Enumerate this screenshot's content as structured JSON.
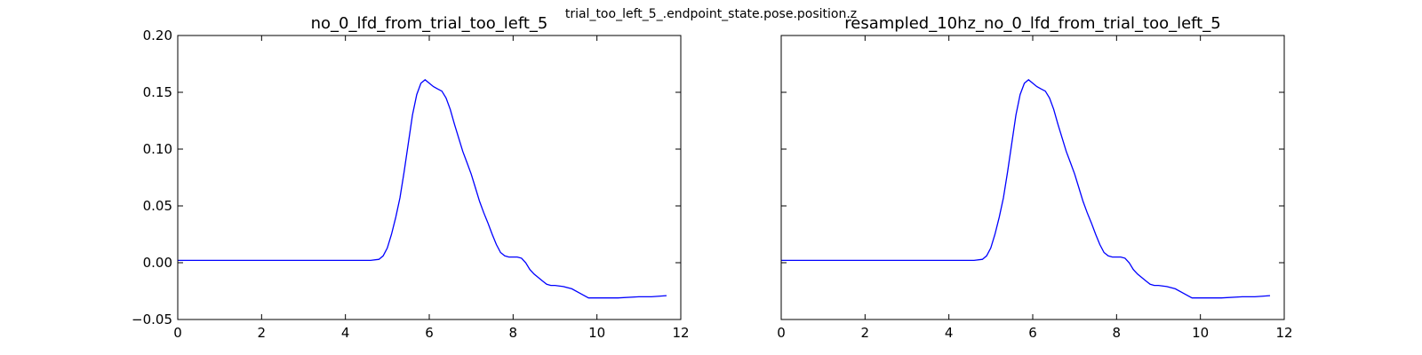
{
  "figure": {
    "suptitle": "trial_too_left_5_.endpoint_state.pose.position.z",
    "line_color": "#0000ff"
  },
  "chart_data": [
    {
      "type": "line",
      "title": "no_0_lfd_from_trial_too_left_5",
      "xlabel": "",
      "ylabel": "",
      "xlim": [
        0,
        12
      ],
      "ylim": [
        -0.05,
        0.2
      ],
      "xticks": [
        "0",
        "2",
        "4",
        "6",
        "8",
        "10",
        "12"
      ],
      "yticks": [
        "−0.05",
        "0.00",
        "0.05",
        "0.10",
        "0.15",
        "0.20"
      ],
      "grid": false,
      "series": [
        {
          "x": [
            0,
            0.5,
            1.0,
            1.5,
            2.0,
            2.5,
            3.0,
            3.5,
            4.0,
            4.3,
            4.6,
            4.8,
            4.9,
            5.0,
            5.1,
            5.2,
            5.3,
            5.4,
            5.5,
            5.6,
            5.7,
            5.8,
            5.9,
            6.0,
            6.1,
            6.2,
            6.3,
            6.4,
            6.5,
            6.6,
            6.7,
            6.8,
            6.9,
            7.0,
            7.1,
            7.2,
            7.3,
            7.4,
            7.5,
            7.6,
            7.7,
            7.8,
            7.9,
            8.0,
            8.1,
            8.2,
            8.3,
            8.4,
            8.5,
            8.6,
            8.7,
            8.8,
            8.9,
            9.0,
            9.2,
            9.4,
            9.6,
            9.8,
            10.0,
            10.2,
            10.5,
            11.0,
            11.3,
            11.66
          ],
          "y": [
            0.002,
            0.002,
            0.002,
            0.002,
            0.002,
            0.002,
            0.002,
            0.002,
            0.002,
            0.002,
            0.002,
            0.003,
            0.006,
            0.013,
            0.025,
            0.04,
            0.057,
            0.08,
            0.105,
            0.13,
            0.148,
            0.158,
            0.161,
            0.158,
            0.155,
            0.153,
            0.151,
            0.145,
            0.135,
            0.122,
            0.11,
            0.098,
            0.088,
            0.078,
            0.066,
            0.054,
            0.044,
            0.035,
            0.025,
            0.016,
            0.009,
            0.006,
            0.005,
            0.005,
            0.005,
            0.004,
            0.0,
            -0.006,
            -0.01,
            -0.013,
            -0.016,
            -0.019,
            -0.02,
            -0.02,
            -0.021,
            -0.023,
            -0.027,
            -0.031,
            -0.031,
            -0.031,
            -0.031,
            -0.03,
            -0.03,
            -0.029
          ]
        }
      ]
    },
    {
      "type": "line",
      "title": "resampled_10hz_no_0_lfd_from_trial_too_left_5",
      "xlabel": "",
      "ylabel": "",
      "xlim": [
        0,
        12
      ],
      "ylim": [
        -0.05,
        0.2
      ],
      "xticks": [
        "0",
        "2",
        "4",
        "6",
        "8",
        "10",
        "12"
      ],
      "yticks": [],
      "grid": false,
      "series": [
        {
          "x": [
            0,
            0.5,
            1.0,
            1.5,
            2.0,
            2.5,
            3.0,
            3.5,
            4.0,
            4.3,
            4.6,
            4.8,
            4.9,
            5.0,
            5.1,
            5.2,
            5.3,
            5.4,
            5.5,
            5.6,
            5.7,
            5.8,
            5.9,
            6.0,
            6.1,
            6.2,
            6.3,
            6.4,
            6.5,
            6.6,
            6.7,
            6.8,
            6.9,
            7.0,
            7.1,
            7.2,
            7.3,
            7.4,
            7.5,
            7.6,
            7.7,
            7.8,
            7.9,
            8.0,
            8.1,
            8.2,
            8.3,
            8.4,
            8.5,
            8.6,
            8.7,
            8.8,
            8.9,
            9.0,
            9.2,
            9.4,
            9.6,
            9.8,
            10.0,
            10.2,
            10.5,
            11.0,
            11.3,
            11.66
          ],
          "y": [
            0.002,
            0.002,
            0.002,
            0.002,
            0.002,
            0.002,
            0.002,
            0.002,
            0.002,
            0.002,
            0.002,
            0.003,
            0.006,
            0.013,
            0.025,
            0.04,
            0.057,
            0.08,
            0.105,
            0.13,
            0.148,
            0.158,
            0.161,
            0.158,
            0.155,
            0.153,
            0.151,
            0.145,
            0.135,
            0.122,
            0.11,
            0.098,
            0.088,
            0.078,
            0.066,
            0.054,
            0.044,
            0.035,
            0.025,
            0.016,
            0.009,
            0.006,
            0.005,
            0.005,
            0.005,
            0.004,
            0.0,
            -0.006,
            -0.01,
            -0.013,
            -0.016,
            -0.019,
            -0.02,
            -0.02,
            -0.021,
            -0.023,
            -0.027,
            -0.031,
            -0.031,
            -0.031,
            -0.031,
            -0.03,
            -0.03,
            -0.029
          ]
        }
      ]
    }
  ]
}
